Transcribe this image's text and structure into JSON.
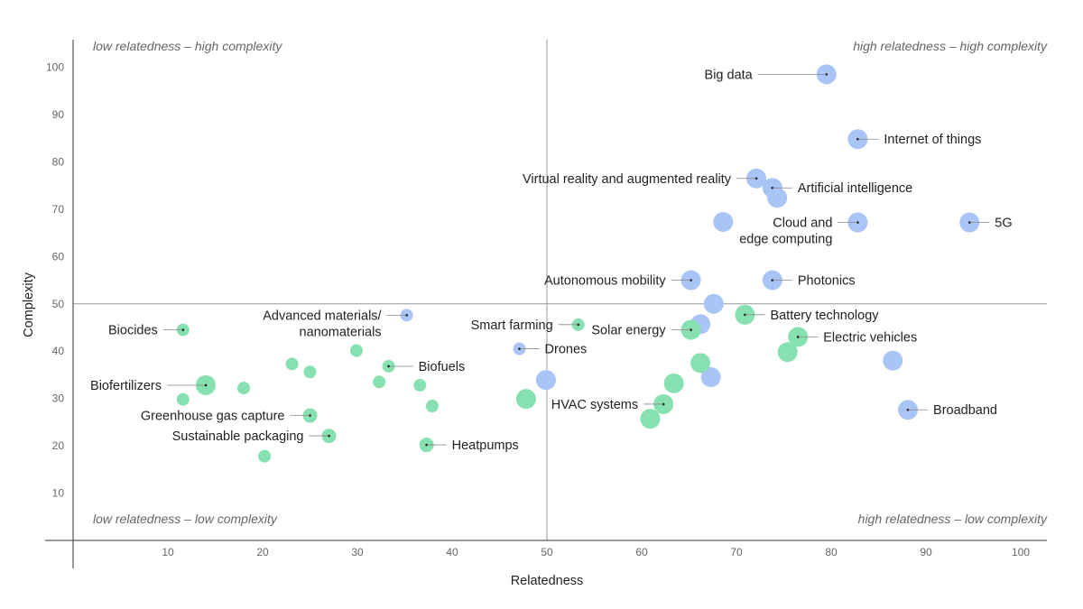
{
  "chart_data": {
    "type": "scatter",
    "title": "",
    "xlabel": "Relatedness",
    "ylabel": "Complexity",
    "xlim": [
      0,
      102
    ],
    "ylim": [
      0,
      105
    ],
    "x_ticks": [
      10,
      20,
      30,
      40,
      50,
      60,
      70,
      80,
      90,
      100
    ],
    "y_ticks": [
      10,
      20,
      30,
      40,
      50,
      60,
      70,
      80,
      90,
      100
    ],
    "divider": {
      "x": 50,
      "y": 50
    },
    "quadrant_labels": {
      "top_left": "low relatedness – high complexity",
      "top_right": "high relatedness – high complexity",
      "bottom_left": "low relatedness – low complexity",
      "bottom_right": "high relatedness – low complexity"
    },
    "colors": {
      "blue": "#a9c4f7",
      "green": "#86e0b0",
      "axis": "#333333",
      "divider": "#999999"
    },
    "series": [
      {
        "name": "blue",
        "color": "#a9c4f7",
        "points": [
          {
            "x": 79.5,
            "y": 98.5,
            "r": 11,
            "label": "Big data"
          },
          {
            "x": 82.8,
            "y": 84.8,
            "r": 11,
            "label": "Internet of things"
          },
          {
            "x": 72.1,
            "y": 76.5,
            "r": 11,
            "label": "Virtual reality and augmented reality"
          },
          {
            "x": 73.8,
            "y": 74.5,
            "r": 11,
            "label": "Artificial intelligence"
          },
          {
            "x": 74.3,
            "y": 72.4,
            "r": 11
          },
          {
            "x": 68.6,
            "y": 67.3,
            "r": 11
          },
          {
            "x": 82.8,
            "y": 67.2,
            "r": 11,
            "label": "Cloud and edge computing"
          },
          {
            "x": 94.6,
            "y": 67.2,
            "r": 11,
            "label": "5G"
          },
          {
            "x": 65.2,
            "y": 55.0,
            "r": 11,
            "label": "Autonomous mobility"
          },
          {
            "x": 73.8,
            "y": 55.0,
            "r": 11,
            "label": "Photonics"
          },
          {
            "x": 67.6,
            "y": 50.0,
            "r": 11
          },
          {
            "x": 66.2,
            "y": 45.7,
            "r": 11
          },
          {
            "x": 35.2,
            "y": 47.6,
            "r": 7,
            "label": "Advanced materials/ nanomaterials"
          },
          {
            "x": 47.1,
            "y": 40.5,
            "r": 7,
            "label": "Drones"
          },
          {
            "x": 49.9,
            "y": 33.9,
            "r": 11
          },
          {
            "x": 67.3,
            "y": 34.5,
            "r": 11
          },
          {
            "x": 86.5,
            "y": 38.0,
            "r": 11
          },
          {
            "x": 88.1,
            "y": 27.6,
            "r": 11,
            "label": "Broadband"
          }
        ]
      },
      {
        "name": "green",
        "color": "#86e0b0",
        "points": [
          {
            "x": 11.6,
            "y": 44.5,
            "r": 7,
            "label": "Biocides"
          },
          {
            "x": 14.0,
            "y": 32.8,
            "r": 11,
            "label": "Biofertilizers"
          },
          {
            "x": 11.6,
            "y": 29.8,
            "r": 7
          },
          {
            "x": 18.0,
            "y": 32.2,
            "r": 7
          },
          {
            "x": 23.1,
            "y": 37.3,
            "r": 7
          },
          {
            "x": 25.0,
            "y": 35.6,
            "r": 7
          },
          {
            "x": 29.9,
            "y": 40.1,
            "r": 7
          },
          {
            "x": 33.3,
            "y": 36.8,
            "r": 7,
            "label": "Biofuels"
          },
          {
            "x": 32.3,
            "y": 33.5,
            "r": 7
          },
          {
            "x": 36.6,
            "y": 32.8,
            "r": 7
          },
          {
            "x": 37.9,
            "y": 28.4,
            "r": 7
          },
          {
            "x": 25.0,
            "y": 26.4,
            "r": 8,
            "label": "Greenhouse gas capture"
          },
          {
            "x": 27.0,
            "y": 22.1,
            "r": 8,
            "label": "Sustainable packaging"
          },
          {
            "x": 20.2,
            "y": 17.8,
            "r": 7
          },
          {
            "x": 37.3,
            "y": 20.2,
            "r": 8,
            "label": "Heatpumps"
          },
          {
            "x": 47.8,
            "y": 29.9,
            "r": 11
          },
          {
            "x": 53.3,
            "y": 45.6,
            "r": 7,
            "label": "Smart farming"
          },
          {
            "x": 65.2,
            "y": 44.5,
            "r": 11,
            "label": "Solar energy"
          },
          {
            "x": 70.9,
            "y": 47.7,
            "r": 11,
            "label": "Battery technology"
          },
          {
            "x": 76.5,
            "y": 43.0,
            "r": 11,
            "label": "Electric vehicles"
          },
          {
            "x": 75.4,
            "y": 39.8,
            "r": 11
          },
          {
            "x": 66.2,
            "y": 37.5,
            "r": 11
          },
          {
            "x": 63.4,
            "y": 33.2,
            "r": 11
          },
          {
            "x": 62.3,
            "y": 28.8,
            "r": 11,
            "label": "HVAC systems"
          },
          {
            "x": 60.9,
            "y": 25.7,
            "r": 11
          }
        ]
      }
    ]
  }
}
